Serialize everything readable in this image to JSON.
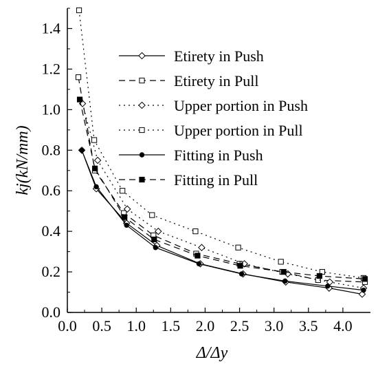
{
  "chart_data": {
    "type": "line",
    "xlabel": "Δ/Δy",
    "ylabel": "kj(kN/mm)",
    "xlim": [
      0,
      4.4
    ],
    "ylim": [
      0,
      1.5
    ],
    "xticks": [
      "0.0",
      "0.5",
      "1.0",
      "1.5",
      "2.0",
      "2.5",
      "3.0",
      "3.5",
      "4.0"
    ],
    "yticks": [
      "0.0",
      "0.2",
      "0.4",
      "0.6",
      "0.8",
      "1.0",
      "1.2",
      "1.4"
    ],
    "legend_position": "upper-right",
    "grid": false,
    "series": [
      {
        "name": "Etirety in Push",
        "line": "solid",
        "marker": "diamond-open",
        "points": [
          [
            0.21,
            0.8
          ],
          [
            0.42,
            0.61
          ],
          [
            0.86,
            0.44
          ],
          [
            1.3,
            0.33
          ],
          [
            1.93,
            0.24
          ],
          [
            2.55,
            0.19
          ],
          [
            3.17,
            0.15
          ],
          [
            3.8,
            0.12
          ],
          [
            4.28,
            0.09
          ]
        ]
      },
      {
        "name": "Etirety in Pull",
        "line": "dashed",
        "marker": "square-open",
        "points": [
          [
            0.16,
            1.16
          ],
          [
            0.4,
            0.7
          ],
          [
            0.82,
            0.49
          ],
          [
            1.25,
            0.38
          ],
          [
            1.87,
            0.29
          ],
          [
            2.5,
            0.24
          ],
          [
            3.12,
            0.2
          ],
          [
            3.64,
            0.16
          ],
          [
            4.32,
            0.15
          ]
        ]
      },
      {
        "name": "Upper portion in Push",
        "line": "dotted",
        "marker": "diamond-open",
        "points": [
          [
            0.22,
            1.03
          ],
          [
            0.44,
            0.75
          ],
          [
            0.87,
            0.51
          ],
          [
            1.32,
            0.4
          ],
          [
            1.95,
            0.32
          ],
          [
            2.57,
            0.24
          ],
          [
            3.2,
            0.19
          ],
          [
            3.81,
            0.15
          ],
          [
            4.3,
            0.12
          ]
        ]
      },
      {
        "name": "Upper portion in Pull",
        "line": "dotted",
        "marker": "square-open",
        "points": [
          [
            0.17,
            1.49
          ],
          [
            0.39,
            0.85
          ],
          [
            0.8,
            0.6
          ],
          [
            1.23,
            0.48
          ],
          [
            1.86,
            0.4
          ],
          [
            2.48,
            0.32
          ],
          [
            3.1,
            0.25
          ],
          [
            3.7,
            0.2
          ],
          [
            4.3,
            0.17
          ]
        ]
      },
      {
        "name": "Fitting in Push",
        "line": "solid",
        "marker": "circle-filled",
        "points": [
          [
            0.21,
            0.8
          ],
          [
            0.42,
            0.62
          ],
          [
            0.86,
            0.43
          ],
          [
            1.28,
            0.32
          ],
          [
            1.91,
            0.24
          ],
          [
            2.53,
            0.19
          ],
          [
            3.16,
            0.155
          ],
          [
            3.78,
            0.13
          ],
          [
            4.3,
            0.11
          ]
        ]
      },
      {
        "name": "Fitting in Pull",
        "line": "dashed",
        "marker": "square-filled",
        "points": [
          [
            0.18,
            1.05
          ],
          [
            0.4,
            0.71
          ],
          [
            0.83,
            0.47
          ],
          [
            1.26,
            0.36
          ],
          [
            1.89,
            0.28
          ],
          [
            2.51,
            0.23
          ],
          [
            3.14,
            0.2
          ],
          [
            3.66,
            0.18
          ],
          [
            4.32,
            0.165
          ]
        ]
      }
    ]
  }
}
